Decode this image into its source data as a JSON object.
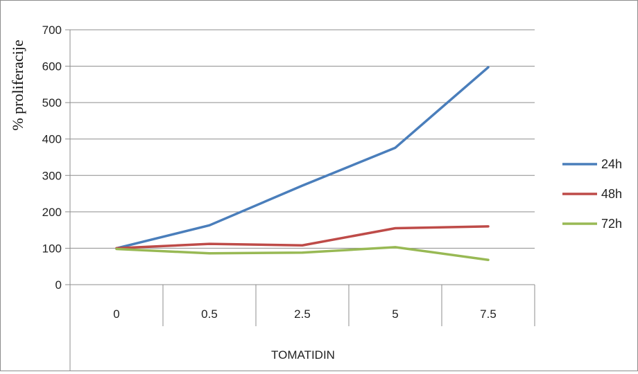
{
  "chart_data": {
    "type": "line",
    "title": "",
    "xlabel": "TOMATIDIN",
    "ylabel": "% proliferacije",
    "categories": [
      "0",
      "0.5",
      "2.5",
      "5",
      "7.5"
    ],
    "ylim": [
      0,
      700
    ],
    "yticks": [
      0,
      100,
      200,
      300,
      400,
      500,
      600,
      700
    ],
    "grid": true,
    "legend": "right",
    "series": [
      {
        "name": "24h",
        "color": "#4a7ebb",
        "values": [
          100,
          163,
          272,
          376,
          597
        ]
      },
      {
        "name": "48h",
        "color": "#be4b48",
        "values": [
          100,
          112,
          108,
          155,
          160
        ]
      },
      {
        "name": "72h",
        "color": "#98b954",
        "values": [
          98,
          86,
          88,
          103,
          68
        ]
      }
    ]
  }
}
